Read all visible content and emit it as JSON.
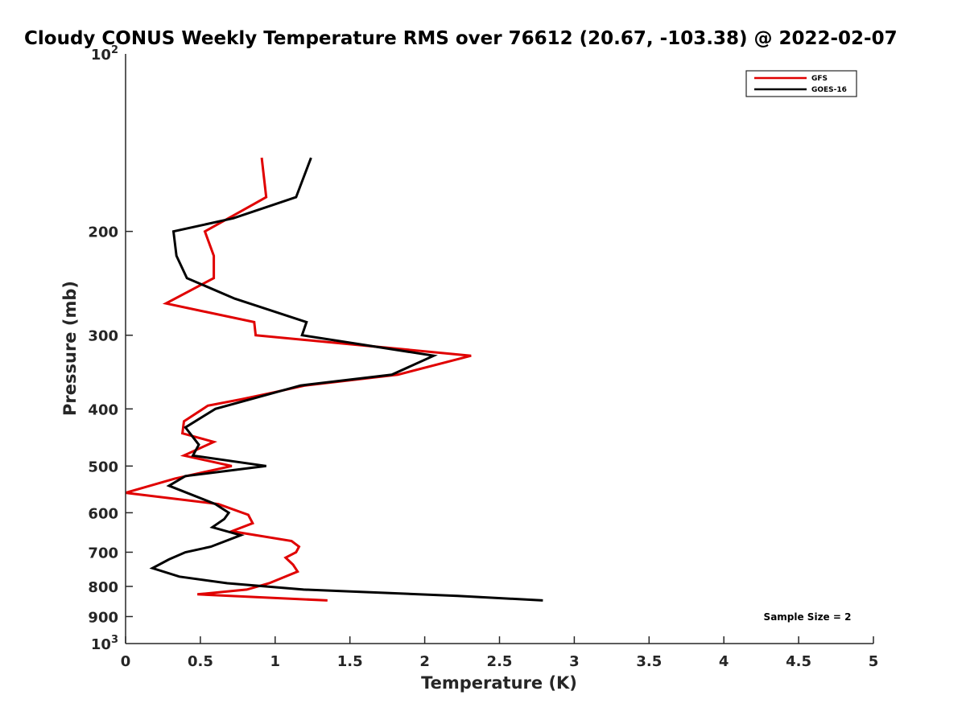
{
  "chart_data": {
    "type": "line",
    "title": "Cloudy CONUS Weekly Temperature RMS over 76612 (20.67, -103.38) @ 2022-02-07",
    "xlabel": "Temperature (K)",
    "ylabel": "Pressure (mb)",
    "xlim": [
      0,
      5
    ],
    "ylim": [
      1000,
      100
    ],
    "yscale": "log",
    "y_reversed": true,
    "x_ticks": [
      0,
      0.5,
      1,
      1.5,
      2,
      2.5,
      3,
      3.5,
      4,
      4.5,
      5
    ],
    "x_tick_labels": [
      "0",
      "0.5",
      "1",
      "1.5",
      "2",
      "2.5",
      "3",
      "3.5",
      "4",
      "4.5",
      "5"
    ],
    "y_ticks": [
      200,
      300,
      400,
      500,
      600,
      700,
      800,
      900
    ],
    "y_tick_labels": [
      "200",
      "300",
      "400",
      "500",
      "600",
      "700",
      "800",
      "900"
    ],
    "y_decade_ticks": [
      {
        "value": 100,
        "base": "10",
        "exp": "2"
      },
      {
        "value": 1000,
        "base": "10",
        "exp": "3"
      }
    ],
    "legend": {
      "position": "top-right"
    },
    "annotation": "Sample Size = 2",
    "series": [
      {
        "name": "GFS",
        "color": "#e00000",
        "points": [
          [
            0.91,
            150
          ],
          [
            0.94,
            175
          ],
          [
            0.53,
            200
          ],
          [
            0.59,
            220
          ],
          [
            0.59,
            240
          ],
          [
            0.27,
            265
          ],
          [
            0.86,
            285
          ],
          [
            0.87,
            300
          ],
          [
            2.31,
            325
          ],
          [
            1.82,
            350
          ],
          [
            1.2,
            365
          ],
          [
            0.99,
            375
          ],
          [
            0.78,
            385
          ],
          [
            0.55,
            395
          ],
          [
            0.39,
            420
          ],
          [
            0.38,
            440
          ],
          [
            0.59,
            455
          ],
          [
            0.39,
            480
          ],
          [
            0.71,
            500
          ],
          [
            0.33,
            525
          ],
          [
            0.0,
            555
          ],
          [
            0.62,
            580
          ],
          [
            0.82,
            605
          ],
          [
            0.85,
            625
          ],
          [
            0.71,
            645
          ],
          [
            1.11,
            670
          ],
          [
            1.16,
            685
          ],
          [
            1.14,
            700
          ],
          [
            1.07,
            715
          ],
          [
            1.12,
            735
          ],
          [
            1.15,
            755
          ],
          [
            0.96,
            790
          ],
          [
            0.81,
            810
          ],
          [
            0.48,
            825
          ],
          [
            1.35,
            845
          ]
        ]
      },
      {
        "name": "GOES-16",
        "color": "#000000",
        "points": [
          [
            1.24,
            150
          ],
          [
            1.14,
            175
          ],
          [
            0.72,
            190
          ],
          [
            0.32,
            200
          ],
          [
            0.34,
            220
          ],
          [
            0.41,
            240
          ],
          [
            0.73,
            260
          ],
          [
            1.21,
            285
          ],
          [
            1.18,
            300
          ],
          [
            2.06,
            325
          ],
          [
            1.78,
            350
          ],
          [
            1.17,
            365
          ],
          [
            0.84,
            385
          ],
          [
            0.6,
            400
          ],
          [
            0.4,
            430
          ],
          [
            0.49,
            460
          ],
          [
            0.45,
            480
          ],
          [
            0.94,
            500
          ],
          [
            0.4,
            520
          ],
          [
            0.29,
            540
          ],
          [
            0.6,
            580
          ],
          [
            0.69,
            600
          ],
          [
            0.66,
            615
          ],
          [
            0.58,
            635
          ],
          [
            0.77,
            655
          ],
          [
            0.57,
            685
          ],
          [
            0.4,
            700
          ],
          [
            0.29,
            720
          ],
          [
            0.18,
            745
          ],
          [
            0.36,
            770
          ],
          [
            0.68,
            790
          ],
          [
            1.19,
            810
          ],
          [
            2.22,
            830
          ],
          [
            2.79,
            845
          ]
        ]
      }
    ]
  }
}
